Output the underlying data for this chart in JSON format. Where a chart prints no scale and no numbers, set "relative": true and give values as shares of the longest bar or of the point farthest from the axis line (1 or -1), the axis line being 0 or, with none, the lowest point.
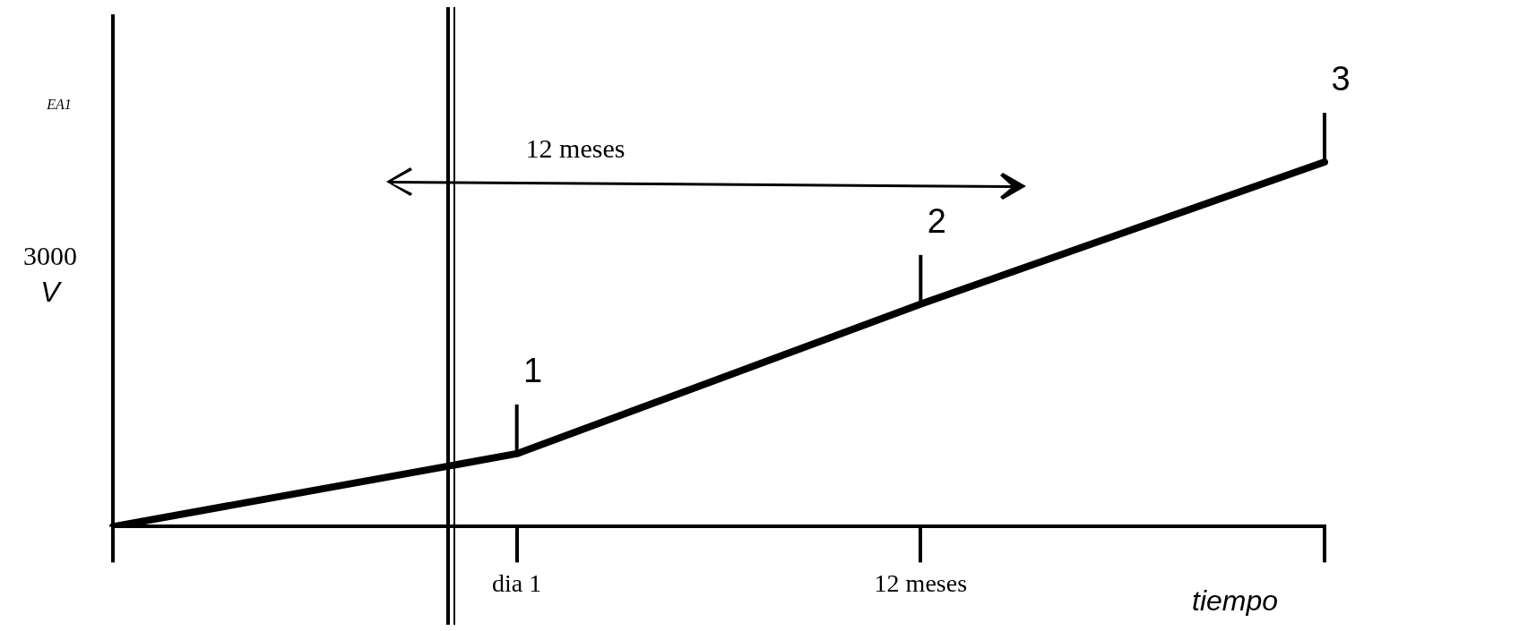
{
  "chart_data": {
    "type": "line",
    "relative": true,
    "xlabel": "tiempo",
    "ylabel": "V",
    "categories": [
      null,
      "dia 1",
      "12 meses",
      null
    ],
    "series": [
      {
        "color": "#000000",
        "values": [
          0,
          0.2,
          0.61,
          1
        ]
      }
    ],
    "marker": "none",
    "line_style": "solid",
    "grid": false,
    "legend": false,
    "annotations": [
      "EA1",
      "3000",
      "12 meses",
      {
        "text": "1",
        "x": "dia 1",
        "y": 0.2
      },
      {
        "text": "2",
        "x": "12 meses",
        "y": 0.61
      },
      "3"
    ]
  }
}
